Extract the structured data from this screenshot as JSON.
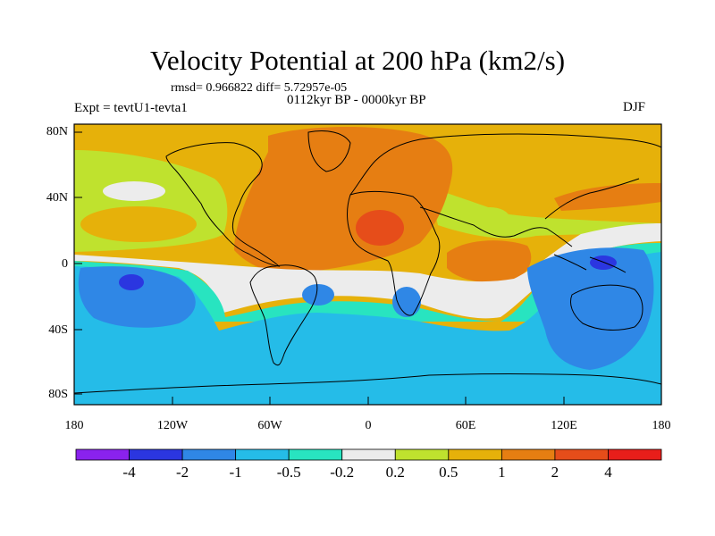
{
  "title": "Velocity Potential at 200 hPa (km2/s)",
  "stats": "rmsd= 0.966822 diff= 5.72957e-05",
  "period": "0112kyr BP - 0000kyr BP",
  "experiment": "Expt = tevtU1-tevta1",
  "season": "DJF",
  "latitude_labels": [
    "80N",
    "40N",
    "0",
    "40S",
    "80S"
  ],
  "longitude_labels": [
    "180",
    "120W",
    "60W",
    "0",
    "60E",
    "120E",
    "180"
  ],
  "colorbar": {
    "colors": [
      "#8a22ee",
      "#2b36e0",
      "#2f87e6",
      "#25bce8",
      "#28e4c0",
      "#ececec",
      "#bfe22e",
      "#e6b10a",
      "#e67e12",
      "#e64d1a",
      "#e81e1a"
    ],
    "labels": [
      "-4",
      "-2",
      "-1",
      "-0.5",
      "-0.2",
      "0.2",
      "0.5",
      "1",
      "2",
      "4"
    ]
  },
  "map": {
    "region_colors": {
      "strong_negative": "#2b36e0",
      "moderate_negative": "#2f87e6",
      "weak_negative": "#25bce8",
      "slight_negative": "#28e4c0",
      "near_zero": "#ececec",
      "slight_positive": "#bfe22e",
      "weak_positive": "#e6b10a",
      "moderate_positive": "#e67e12",
      "strong_positive": "#e64d1a"
    }
  }
}
